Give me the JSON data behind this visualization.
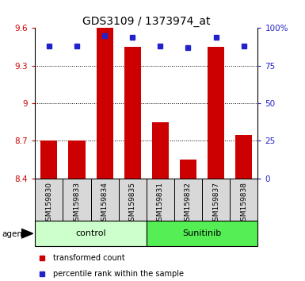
{
  "title": "GDS3109 / 1373974_at",
  "samples": [
    "GSM159830",
    "GSM159833",
    "GSM159834",
    "GSM159835",
    "GSM159831",
    "GSM159832",
    "GSM159837",
    "GSM159838"
  ],
  "bar_values": [
    8.7,
    8.7,
    9.6,
    9.45,
    8.85,
    8.55,
    9.45,
    8.75
  ],
  "percentile_values": [
    88,
    88,
    95,
    94,
    88,
    87,
    94,
    88
  ],
  "ylim": [
    8.4,
    9.6
  ],
  "yticks_left": [
    8.4,
    8.7,
    9.0,
    9.3,
    9.6
  ],
  "ytick_labels_left": [
    "8.4",
    "8.7",
    "9",
    "9.3",
    "9.6"
  ],
  "yticks_right": [
    0,
    25,
    50,
    75,
    100
  ],
  "ytick_labels_right": [
    "0",
    "25",
    "50",
    "75",
    "100%"
  ],
  "grid_values": [
    8.7,
    9.0,
    9.3
  ],
  "bar_color": "#cc0000",
  "blue_color": "#2222cc",
  "bar_bottom": 8.4,
  "groups": [
    {
      "label": "control",
      "start": 0,
      "end": 4,
      "color": "#ccffcc"
    },
    {
      "label": "Sunitinib",
      "start": 4,
      "end": 8,
      "color": "#55ee55"
    }
  ],
  "agent_label": "agent",
  "legend_items": [
    {
      "color": "#cc0000",
      "label": "transformed count"
    },
    {
      "color": "#2222cc",
      "label": "percentile rank within the sample"
    }
  ],
  "title_fontsize": 10,
  "tick_fontsize": 7.5,
  "label_fontsize": 6.5,
  "bg_color": "#d8d8d8",
  "plot_bg": "#ffffff",
  "bar_width": 0.6
}
